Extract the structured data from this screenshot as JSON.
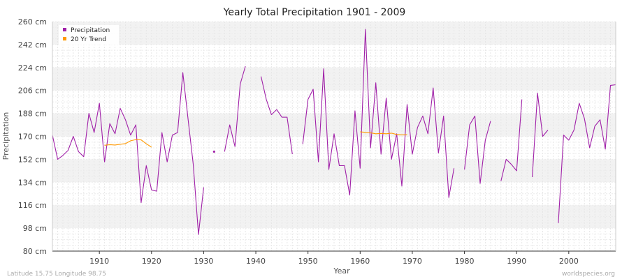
{
  "chart_data": {
    "type": "line",
    "title": "Yearly Total Precipitation 1901 - 2009",
    "xlabel": "Year",
    "ylabel": "Precipitation",
    "xlim": [
      1901,
      2009
    ],
    "ylim": [
      80,
      260
    ],
    "x_ticks": [
      1910,
      1920,
      1930,
      1940,
      1950,
      1960,
      1970,
      1980,
      1990,
      2000
    ],
    "y_ticks": [
      80,
      98,
      116,
      134,
      152,
      170,
      188,
      206,
      224,
      242,
      260
    ],
    "y_tick_labels": [
      "80 cm",
      "98 cm",
      "116 cm",
      "134 cm",
      "152 cm",
      "170 cm",
      "188 cm",
      "206 cm",
      "224 cm",
      "242 cm",
      "260 cm"
    ],
    "grid": true,
    "legend_position": "top-left",
    "series": [
      {
        "name": "Precipitation",
        "color": "#a020a8",
        "points": [
          [
            1901,
            171
          ],
          [
            1902,
            152
          ],
          [
            1903,
            155
          ],
          [
            1904,
            159
          ],
          [
            1905,
            170
          ],
          [
            1906,
            158
          ],
          [
            1907,
            154
          ],
          [
            1908,
            188
          ],
          [
            1909,
            173
          ],
          [
            1910,
            196
          ],
          [
            1911,
            150
          ],
          [
            1912,
            180
          ],
          [
            1913,
            172
          ],
          [
            1914,
            192
          ],
          [
            1915,
            183
          ],
          [
            1916,
            171
          ],
          [
            1917,
            179
          ],
          [
            1918,
            118
          ],
          [
            1919,
            147
          ],
          [
            1920,
            128
          ],
          [
            1921,
            127
          ],
          [
            1922,
            173
          ],
          [
            1923,
            150
          ],
          [
            1924,
            171
          ],
          [
            1925,
            173
          ],
          [
            1926,
            220
          ],
          [
            1927,
            184
          ],
          [
            1928,
            148
          ],
          [
            1929,
            93
          ],
          [
            1930,
            130
          ],
          [
            1931,
            null
          ],
          [
            1932,
            158
          ],
          [
            1933,
            null
          ],
          [
            1934,
            158
          ],
          [
            1935,
            179
          ],
          [
            1936,
            162
          ],
          [
            1937,
            211
          ],
          [
            1938,
            225
          ],
          [
            1939,
            null
          ],
          [
            1940,
            null
          ],
          [
            1941,
            217
          ],
          [
            1942,
            199
          ],
          [
            1943,
            187
          ],
          [
            1944,
            191
          ],
          [
            1945,
            185
          ],
          [
            1946,
            185
          ],
          [
            1947,
            156
          ],
          [
            1948,
            null
          ],
          [
            1949,
            164
          ],
          [
            1950,
            199
          ],
          [
            1951,
            207
          ],
          [
            1952,
            150
          ],
          [
            1953,
            223
          ],
          [
            1954,
            144
          ],
          [
            1955,
            172
          ],
          [
            1956,
            147
          ],
          [
            1957,
            147
          ],
          [
            1958,
            124
          ],
          [
            1959,
            190
          ],
          [
            1960,
            145
          ],
          [
            1961,
            254
          ],
          [
            1962,
            161
          ],
          [
            1963,
            212
          ],
          [
            1964,
            156
          ],
          [
            1965,
            200
          ],
          [
            1966,
            152
          ],
          [
            1967,
            172
          ],
          [
            1968,
            131
          ],
          [
            1969,
            195
          ],
          [
            1970,
            156
          ],
          [
            1971,
            177
          ],
          [
            1972,
            186
          ],
          [
            1973,
            172
          ],
          [
            1974,
            208
          ],
          [
            1975,
            157
          ],
          [
            1976,
            186
          ],
          [
            1977,
            122
          ],
          [
            1978,
            145
          ],
          [
            1979,
            null
          ],
          [
            1980,
            144
          ],
          [
            1981,
            179
          ],
          [
            1982,
            186
          ],
          [
            1983,
            133
          ],
          [
            1984,
            167
          ],
          [
            1985,
            182
          ],
          [
            1986,
            null
          ],
          [
            1987,
            135
          ],
          [
            1988,
            152
          ],
          [
            1989,
            148
          ],
          [
            1990,
            143
          ],
          [
            1991,
            199
          ],
          [
            1992,
            null
          ],
          [
            1993,
            138
          ],
          [
            1994,
            204
          ],
          [
            1995,
            170
          ],
          [
            1996,
            175
          ],
          [
            1997,
            null
          ],
          [
            1998,
            102
          ],
          [
            1999,
            171
          ],
          [
            2000,
            167
          ],
          [
            2001,
            175
          ],
          [
            2002,
            196
          ],
          [
            2003,
            184
          ],
          [
            2004,
            161
          ],
          [
            2005,
            178
          ],
          [
            2006,
            183
          ],
          [
            2007,
            160
          ],
          [
            2008,
            210
          ],
          [
            2009,
            210.5
          ]
        ]
      },
      {
        "name": "20 Yr Trend",
        "color": "#ff9900",
        "points": [
          [
            1911,
            163
          ],
          [
            1912,
            163.5
          ],
          [
            1913,
            163.2
          ],
          [
            1914,
            163.8
          ],
          [
            1915,
            164.3
          ],
          [
            1916,
            166.5
          ],
          [
            1917,
            167.5
          ],
          [
            1918,
            167.2
          ],
          [
            1919,
            164.2
          ],
          [
            1920,
            161.5
          ],
          [
            1960,
            173.5
          ],
          [
            1961,
            173.2
          ],
          [
            1962,
            172.8
          ],
          [
            1963,
            172
          ],
          [
            1964,
            172.3
          ],
          [
            1965,
            172
          ],
          [
            1966,
            172.5
          ],
          [
            1967,
            171.5
          ],
          [
            1968,
            171.2
          ],
          [
            1969,
            171.3
          ]
        ]
      }
    ]
  },
  "footer": {
    "left": "Latitude 15.75 Longitude 98.75",
    "right": "worldspecies.org"
  }
}
